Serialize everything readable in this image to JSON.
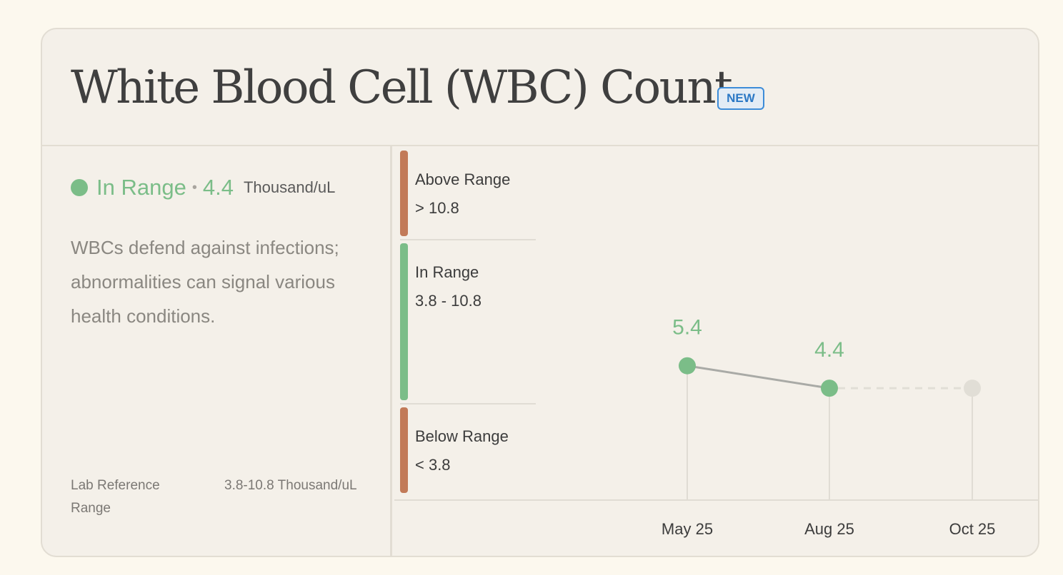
{
  "header": {
    "title": "White Blood Cell (WBC) Count",
    "badge": "NEW"
  },
  "summary": {
    "status_label": "In Range",
    "separator": "•",
    "value": "4.4",
    "unit": "Thousand/uL",
    "description": "WBCs defend against infections; abnormalities can signal various health conditions.",
    "reference_label": "Lab Reference Range",
    "reference_value": "3.8-10.8 Thousand/uL"
  },
  "colors": {
    "in_range": "#7bbd88",
    "out_of_range": "#c27a58",
    "future_point": "#e1ded6",
    "line": "#a9aaa6",
    "grid": "#e0dcd4"
  },
  "chart_data": {
    "type": "line",
    "bands": [
      {
        "label": "Above Range",
        "range_text": "> 10.8",
        "status": "out"
      },
      {
        "label": "In Range",
        "range_text": "3.8 - 10.8",
        "status": "in"
      },
      {
        "label": "Below Range",
        "range_text": "< 3.8",
        "status": "out"
      }
    ],
    "categories": [
      "May 25",
      "Aug 25",
      "Oct 25"
    ],
    "series": [
      {
        "values": [
          5.4,
          4.4,
          null
        ]
      }
    ],
    "data_labels": [
      "5.4",
      "4.4",
      ""
    ],
    "projection": {
      "from": "Aug 25",
      "to": "Oct 25",
      "style": "dashed"
    },
    "title": "",
    "xlabel": "",
    "ylabel": ""
  }
}
